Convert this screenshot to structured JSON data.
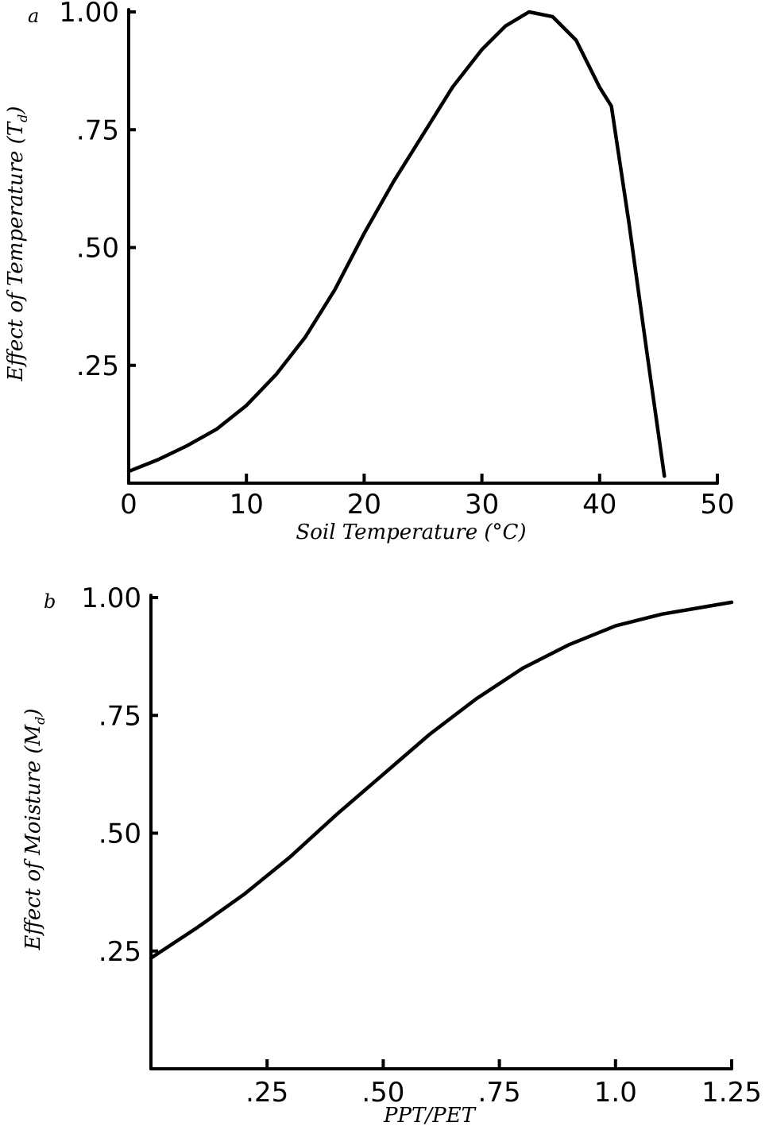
{
  "chart_data": [
    {
      "type": "line",
      "panel_label": "a",
      "xlabel": "Soil Temperature (°C)",
      "ylabel_main": "Effect of Temperature (T",
      "ylabel_sub": "d",
      "ylabel_close": ")",
      "xlim": [
        0,
        50
      ],
      "ylim": [
        0,
        1.0
      ],
      "xticks": [
        {
          "value": 0,
          "label": "0"
        },
        {
          "value": 10,
          "label": "10"
        },
        {
          "value": 20,
          "label": "20"
        },
        {
          "value": 30,
          "label": "30"
        },
        {
          "value": 40,
          "label": "40"
        },
        {
          "value": 50,
          "label": "50"
        }
      ],
      "yticks": [
        {
          "value": 0.25,
          "label": ".25"
        },
        {
          "value": 0.5,
          "label": ".50"
        },
        {
          "value": 0.75,
          "label": ".75"
        },
        {
          "value": 1.0,
          "label": "1.00"
        }
      ],
      "series": [
        {
          "x": [
            0,
            2.5,
            5,
            7.5,
            10,
            12.5,
            15,
            17.5,
            20,
            22.5,
            25,
            27.5,
            30,
            32,
            34,
            36,
            38,
            40,
            41,
            42.5,
            44,
            45.5
          ],
          "y": [
            0.025,
            0.05,
            0.08,
            0.115,
            0.165,
            0.23,
            0.31,
            0.41,
            0.53,
            0.64,
            0.74,
            0.84,
            0.92,
            0.97,
            1.0,
            0.99,
            0.94,
            0.84,
            0.8,
            0.55,
            0.28,
            0.015
          ]
        }
      ]
    },
    {
      "type": "line",
      "panel_label": "b",
      "xlabel": "PPT/PET",
      "ylabel_main": "Effect of Moisture (M",
      "ylabel_sub": "d",
      "ylabel_close": ")",
      "xlim": [
        0,
        1.25
      ],
      "ylim": [
        0,
        1.0
      ],
      "xticks": [
        {
          "value": 0.25,
          "label": ".25"
        },
        {
          "value": 0.5,
          "label": ".50"
        },
        {
          "value": 0.75,
          "label": ".75"
        },
        {
          "value": 1.0,
          "label": "1.0"
        },
        {
          "value": 1.25,
          "label": "1.25"
        }
      ],
      "yticks": [
        {
          "value": 0.25,
          "label": ".25"
        },
        {
          "value": 0.5,
          "label": ".50"
        },
        {
          "value": 0.75,
          "label": ".75"
        },
        {
          "value": 1.0,
          "label": "1.00"
        }
      ],
      "series": [
        {
          "x": [
            0,
            0.1,
            0.2,
            0.3,
            0.4,
            0.5,
            0.6,
            0.7,
            0.8,
            0.9,
            1.0,
            1.1,
            1.25
          ],
          "y": [
            0.235,
            0.3,
            0.37,
            0.45,
            0.54,
            0.625,
            0.71,
            0.785,
            0.85,
            0.9,
            0.94,
            0.965,
            0.99
          ]
        }
      ]
    }
  ]
}
